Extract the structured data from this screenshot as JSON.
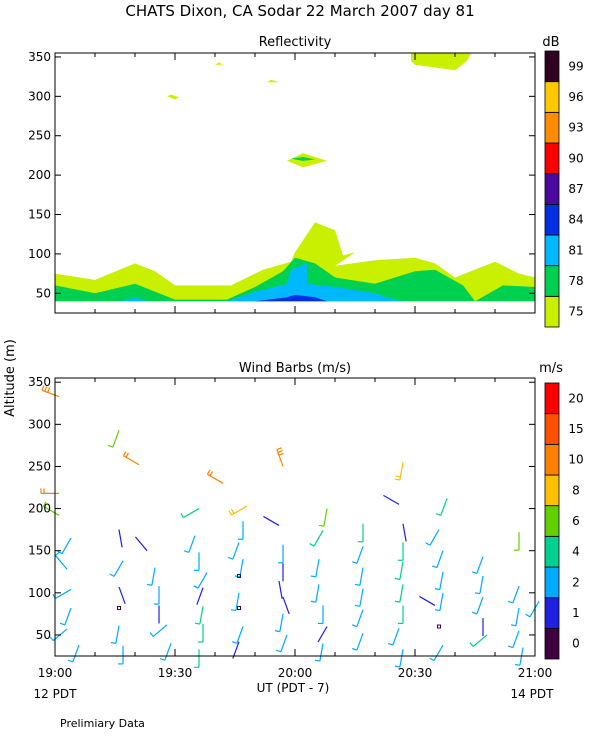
{
  "title": "CHATS Dixon, CA   Sodar   22 March 2007   day   81",
  "footer": "Prelimiary Data",
  "y_axis_label": "Altitude (m)",
  "x_axis": {
    "label": "UT  (PDT - 7)",
    "ticks": [
      "19:00",
      "19:30",
      "20:00",
      "20:30",
      "21:00"
    ],
    "range": [
      "19:00",
      "21:00"
    ],
    "left_note": "12 PDT",
    "right_note": "14 PDT"
  },
  "colors": {
    "refl": [
      "#c8f000",
      "#00d050",
      "#00b8ff",
      "#0030e0",
      "#4a0aa0",
      "#ff0000",
      "#ff8c00",
      "#ffc800",
      "#300020"
    ],
    "wind": [
      "#400040",
      "#2020e0",
      "#00aaff",
      "#00d090",
      "#60d000",
      "#ffc000",
      "#ff8000",
      "#ff5000",
      "#ff0000"
    ]
  },
  "chart_data": [
    {
      "type": "heatmap",
      "title": "Reflectivity",
      "units": "dB",
      "ylim": [
        25,
        355
      ],
      "yticks": [
        50,
        100,
        150,
        200,
        250,
        300,
        350
      ],
      "colorbar_ticks": [
        75,
        78,
        81,
        84,
        87,
        90,
        93,
        96,
        99
      ],
      "contours": [
        {
          "level": 75,
          "points": [
            [
              "19:00",
              40
            ],
            [
              "19:00",
              75
            ],
            [
              "19:10",
              67
            ],
            [
              "19:20",
              88
            ],
            [
              "19:25",
              78
            ],
            [
              "19:30",
              60
            ],
            [
              "19:44",
              60
            ],
            [
              "19:52",
              80
            ],
            [
              "19:59",
              90
            ],
            [
              "20:00",
              102
            ],
            [
              "20:05",
              140
            ],
            [
              "20:10",
              130
            ],
            [
              "20:12",
              98
            ],
            [
              "20:15",
              102
            ],
            [
              "20:10",
              85
            ],
            [
              "20:20",
              92
            ],
            [
              "20:30",
              95
            ],
            [
              "20:35",
              88
            ],
            [
              "20:40",
              70
            ],
            [
              "20:50",
              90
            ],
            [
              "20:56",
              75
            ],
            [
              "21:00",
              70
            ],
            [
              "21:00",
              40
            ]
          ]
        },
        {
          "level": 78,
          "points": [
            [
              "19:00",
              40
            ],
            [
              "19:00",
              60
            ],
            [
              "19:10",
              50
            ],
            [
              "19:20",
              62
            ],
            [
              "19:30",
              42
            ],
            [
              "19:43",
              42
            ],
            [
              "19:50",
              58
            ],
            [
              "19:57",
              78
            ],
            [
              "20:00",
              95
            ],
            [
              "20:05",
              88
            ],
            [
              "20:10",
              70
            ],
            [
              "20:20",
              62
            ],
            [
              "20:30",
              78
            ],
            [
              "20:35",
              80
            ],
            [
              "20:42",
              60
            ],
            [
              "20:45",
              40
            ],
            [
              "20:52",
              60
            ],
            [
              "21:00",
              58
            ],
            [
              "21:00",
              40
            ]
          ]
        },
        {
          "level": 81,
          "points": [
            [
              "19:16",
              40
            ],
            [
              "19:20",
              45
            ],
            [
              "19:23",
              40
            ]
          ]
        },
        {
          "level": 81,
          "points": [
            [
              "19:43",
              40
            ],
            [
              "19:50",
              52
            ],
            [
              "19:58",
              62
            ],
            [
              "19:59",
              80
            ],
            [
              "20:03",
              88
            ],
            [
              "20:03",
              62
            ],
            [
              "20:10",
              58
            ],
            [
              "20:20",
              50
            ],
            [
              "20:25",
              42
            ],
            [
              "20:27",
              40
            ]
          ]
        },
        {
          "level": 84,
          "points": [
            [
              "19:50",
              40
            ],
            [
              "19:58",
              45
            ],
            [
              "20:00",
              48
            ],
            [
              "20:05",
              45
            ],
            [
              "20:08",
              40
            ]
          ]
        },
        {
          "level": 75,
          "points": [
            [
              "19:58",
              218
            ],
            [
              "20:02",
              228
            ],
            [
              "20:08",
              218
            ],
            [
              "20:02",
              210
            ]
          ]
        },
        {
          "level": 78,
          "points": [
            [
              "19:59",
              221
            ],
            [
              "20:02",
              223
            ],
            [
              "20:05",
              220
            ],
            [
              "20:02",
              218
            ]
          ]
        },
        {
          "level": 75,
          "points": [
            [
              "19:29",
              302
            ],
            [
              "19:31",
              299
            ],
            [
              "19:30",
              296
            ],
            [
              "19:28",
              300
            ]
          ]
        },
        {
          "level": 75,
          "points": [
            [
              "19:40",
              340
            ],
            [
              "19:41",
              343
            ],
            [
              "19:42",
              340
            ]
          ]
        },
        {
          "level": 75,
          "points": [
            [
              "19:54",
              321
            ],
            [
              "19:56",
              318
            ],
            [
              "19:53",
              318
            ]
          ]
        },
        {
          "level": 75,
          "points": [
            [
              "20:29",
              345
            ],
            [
              "20:30",
              340
            ],
            [
              "20:40",
              333
            ],
            [
              "20:43",
              345
            ],
            [
              "20:44",
              355
            ],
            [
              "20:29",
              355
            ]
          ]
        }
      ]
    },
    {
      "type": "scatter",
      "title": "Wind Barbs (m/s)",
      "units": "m/s",
      "ylim": [
        25,
        355
      ],
      "yticks": [
        50,
        100,
        150,
        200,
        250,
        300,
        350
      ],
      "colorbar_ticks": [
        0,
        1,
        2,
        4,
        6,
        8,
        10,
        15,
        20
      ],
      "barbs": [
        {
          "x": "19:01",
          "y": 333,
          "speed": 12,
          "dir": 290
        },
        {
          "x": "19:01",
          "y": 218,
          "speed": 10,
          "dir": 270
        },
        {
          "x": "19:01",
          "y": 192,
          "speed": 6,
          "dir": 300
        },
        {
          "x": "19:04",
          "y": 165,
          "speed": 3,
          "dir": 210
        },
        {
          "x": "19:03",
          "y": 128,
          "speed": 2,
          "dir": 320
        },
        {
          "x": "19:04",
          "y": 104,
          "speed": 2,
          "dir": 240
        },
        {
          "x": "19:04",
          "y": 82,
          "speed": 3,
          "dir": 200
        },
        {
          "x": "19:03",
          "y": 57,
          "speed": 3,
          "dir": 230
        },
        {
          "x": "19:06",
          "y": 38,
          "speed": 2,
          "dir": 200
        },
        {
          "x": "19:16",
          "y": 293,
          "speed": 6,
          "dir": 200
        },
        {
          "x": "19:16",
          "y": 175,
          "speed": 1,
          "dir": 170
        },
        {
          "x": "19:17",
          "y": 138,
          "speed": 3,
          "dir": 210
        },
        {
          "x": "19:16",
          "y": 107,
          "speed": 1,
          "dir": 160
        },
        {
          "x": "19:16",
          "y": 82,
          "speed": 0.5,
          "dir": 0
        },
        {
          "x": "19:16",
          "y": 61,
          "speed": 3,
          "dir": 190
        },
        {
          "x": "19:17",
          "y": 37,
          "speed": 3,
          "dir": 180
        },
        {
          "x": "19:21",
          "y": 252,
          "speed": 10,
          "dir": 300
        },
        {
          "x": "19:23",
          "y": 150,
          "speed": 1,
          "dir": 320
        },
        {
          "x": "19:25",
          "y": 130,
          "speed": 3,
          "dir": 190
        },
        {
          "x": "19:26",
          "y": 108,
          "speed": 3,
          "dir": 180
        },
        {
          "x": "19:26",
          "y": 85,
          "speed": 1,
          "dir": 180
        },
        {
          "x": "19:28",
          "y": 62,
          "speed": 3,
          "dir": 230
        },
        {
          "x": "19:29",
          "y": 40,
          "speed": 3,
          "dir": 200
        },
        {
          "x": "19:36",
          "y": 200,
          "speed": 5,
          "dir": 240
        },
        {
          "x": "19:35",
          "y": 168,
          "speed": 3,
          "dir": 200
        },
        {
          "x": "19:36",
          "y": 148,
          "speed": 3,
          "dir": 180
        },
        {
          "x": "19:38",
          "y": 124,
          "speed": 3,
          "dir": 210
        },
        {
          "x": "19:37",
          "y": 106,
          "speed": 1,
          "dir": 200
        },
        {
          "x": "19:37",
          "y": 84,
          "speed": 4,
          "dir": 190
        },
        {
          "x": "19:37",
          "y": 63,
          "speed": 4,
          "dir": 180
        },
        {
          "x": "19:36",
          "y": 33,
          "speed": 4,
          "dir": 180
        },
        {
          "x": "19:42",
          "y": 230,
          "speed": 10,
          "dir": 300
        },
        {
          "x": "19:48",
          "y": 203,
          "speed": 8,
          "dir": 240
        },
        {
          "x": "19:47",
          "y": 185,
          "speed": 3,
          "dir": 180
        },
        {
          "x": "19:46",
          "y": 160,
          "speed": 3,
          "dir": 200
        },
        {
          "x": "19:47",
          "y": 140,
          "speed": 3,
          "dir": 190
        },
        {
          "x": "19:46",
          "y": 120,
          "speed": 0.5,
          "dir": 0
        },
        {
          "x": "19:46",
          "y": 100,
          "speed": 3,
          "dir": 190
        },
        {
          "x": "19:46",
          "y": 82,
          "speed": 0.5,
          "dir": 0
        },
        {
          "x": "19:47",
          "y": 60,
          "speed": 3,
          "dir": 200
        },
        {
          "x": "19:46",
          "y": 42,
          "speed": 1,
          "dir": 200
        },
        {
          "x": "19:57",
          "y": 250,
          "speed": 12,
          "dir": 340
        },
        {
          "x": "19:56",
          "y": 180,
          "speed": 1,
          "dir": 300
        },
        {
          "x": "19:57",
          "y": 157,
          "speed": 3,
          "dir": 180
        },
        {
          "x": "19:57",
          "y": 135,
          "speed": 1,
          "dir": 180
        },
        {
          "x": "19:56",
          "y": 114,
          "speed": 1,
          "dir": 170
        },
        {
          "x": "19:57",
          "y": 95,
          "speed": 1,
          "dir": 160
        },
        {
          "x": "19:57",
          "y": 75,
          "speed": 3,
          "dir": 190
        },
        {
          "x": "19:58",
          "y": 50,
          "speed": 3,
          "dir": 200
        },
        {
          "x": "20:08",
          "y": 200,
          "speed": 6,
          "dir": 190
        },
        {
          "x": "20:07",
          "y": 174,
          "speed": 4,
          "dir": 210
        },
        {
          "x": "20:06",
          "y": 140,
          "speed": 3,
          "dir": 190
        },
        {
          "x": "20:06",
          "y": 110,
          "speed": 3,
          "dir": 190
        },
        {
          "x": "20:07",
          "y": 85,
          "speed": 3,
          "dir": 180
        },
        {
          "x": "20:08",
          "y": 60,
          "speed": 1,
          "dir": 210
        },
        {
          "x": "20:07",
          "y": 40,
          "speed": 3,
          "dir": 190
        },
        {
          "x": "20:17",
          "y": 182,
          "speed": 4,
          "dir": 180
        },
        {
          "x": "20:17",
          "y": 155,
          "speed": 3,
          "dir": 200
        },
        {
          "x": "20:17",
          "y": 130,
          "speed": 3,
          "dir": 190
        },
        {
          "x": "20:17",
          "y": 105,
          "speed": 3,
          "dir": 190
        },
        {
          "x": "20:17",
          "y": 80,
          "speed": 3,
          "dir": 200
        },
        {
          "x": "20:17",
          "y": 52,
          "speed": 3,
          "dir": 200
        },
        {
          "x": "20:27",
          "y": 255,
          "speed": 8,
          "dir": 190
        },
        {
          "x": "20:26",
          "y": 205,
          "speed": 1,
          "dir": 300
        },
        {
          "x": "20:27",
          "y": 182,
          "speed": 1,
          "dir": 170
        },
        {
          "x": "20:27",
          "y": 160,
          "speed": 4,
          "dir": 180
        },
        {
          "x": "20:27",
          "y": 137,
          "speed": 4,
          "dir": 190
        },
        {
          "x": "20:27",
          "y": 110,
          "speed": 4,
          "dir": 190
        },
        {
          "x": "20:27",
          "y": 85,
          "speed": 4,
          "dir": 180
        },
        {
          "x": "20:26",
          "y": 58,
          "speed": 3,
          "dir": 200
        },
        {
          "x": "20:27",
          "y": 33,
          "speed": 3,
          "dir": 190
        },
        {
          "x": "20:38",
          "y": 212,
          "speed": 4,
          "dir": 200
        },
        {
          "x": "20:36",
          "y": 175,
          "speed": 3,
          "dir": 210
        },
        {
          "x": "20:37",
          "y": 150,
          "speed": 3,
          "dir": 200
        },
        {
          "x": "20:37",
          "y": 125,
          "speed": 3,
          "dir": 190
        },
        {
          "x": "20:37",
          "y": 100,
          "speed": 3,
          "dir": 190
        },
        {
          "x": "20:35",
          "y": 85,
          "speed": 1,
          "dir": 300
        },
        {
          "x": "20:36",
          "y": 60,
          "speed": 0.5,
          "dir": 0
        },
        {
          "x": "20:37",
          "y": 38,
          "speed": 3,
          "dir": 210
        },
        {
          "x": "20:47",
          "y": 143,
          "speed": 3,
          "dir": 200
        },
        {
          "x": "20:47",
          "y": 120,
          "speed": 3,
          "dir": 190
        },
        {
          "x": "20:47",
          "y": 95,
          "speed": 3,
          "dir": 200
        },
        {
          "x": "20:47",
          "y": 70,
          "speed": 1,
          "dir": 180
        },
        {
          "x": "20:48",
          "y": 50,
          "speed": 4,
          "dir": 230
        },
        {
          "x": "20:56",
          "y": 172,
          "speed": 6,
          "dir": 180
        },
        {
          "x": "20:56",
          "y": 108,
          "speed": 3,
          "dir": 200
        },
        {
          "x": "20:56",
          "y": 82,
          "speed": 3,
          "dir": 190
        },
        {
          "x": "20:56",
          "y": 55,
          "speed": 3,
          "dir": 200
        },
        {
          "x": "20:57",
          "y": 35,
          "speed": 3,
          "dir": 190
        },
        {
          "x": "21:01",
          "y": 90,
          "speed": 3,
          "dir": 210
        }
      ]
    }
  ]
}
